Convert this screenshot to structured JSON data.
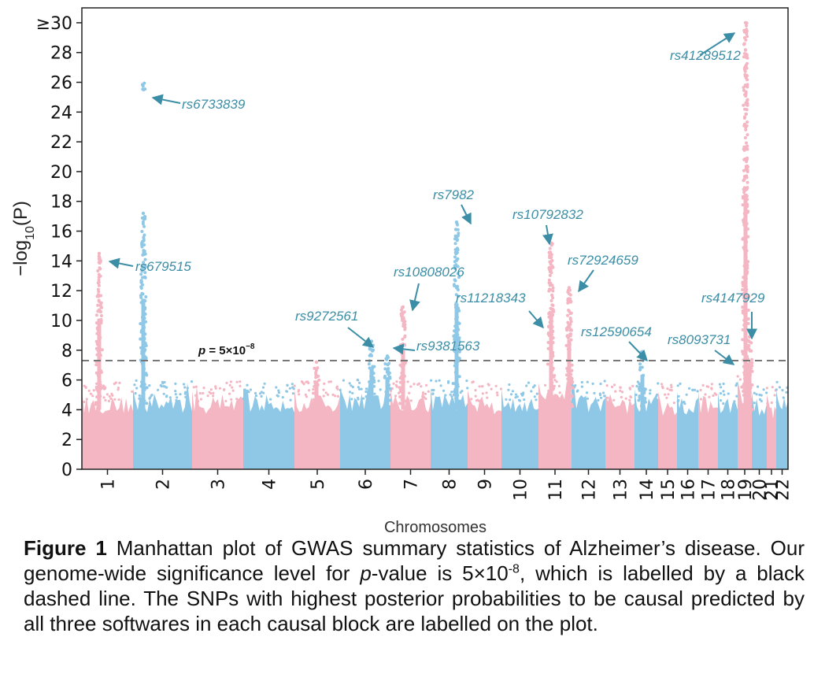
{
  "chart_data": {
    "type": "scatter",
    "subtype": "manhattan",
    "xlabel": "Chromosomes",
    "ylabel_parts": {
      "prefix": "−log",
      "subscript": "10",
      "suffix": "(P)"
    },
    "ylim": [
      0,
      31
    ],
    "yticks": [
      0,
      2,
      4,
      6,
      8,
      10,
      12,
      14,
      16,
      18,
      20,
      22,
      24,
      26,
      28,
      30
    ],
    "ytick_top_label": "≥30",
    "colors": {
      "pink": "#f4b6c2",
      "blue": "#8ec8e6",
      "annotation": "#3b8ea5",
      "threshold": "#777777"
    },
    "chromosomes": [
      {
        "label": "1",
        "start": 0,
        "end": 65,
        "color": "pink",
        "base": 3.7
      },
      {
        "label": "2",
        "start": 65,
        "end": 140,
        "color": "blue",
        "base": 3.8
      },
      {
        "label": "3",
        "start": 140,
        "end": 205,
        "color": "pink",
        "base": 3.7
      },
      {
        "label": "4",
        "start": 205,
        "end": 270,
        "color": "blue",
        "base": 3.8
      },
      {
        "label": "5",
        "start": 270,
        "end": 328,
        "color": "pink",
        "base": 3.8
      },
      {
        "label": "6",
        "start": 328,
        "end": 392,
        "color": "blue",
        "base": 3.9
      },
      {
        "label": "7",
        "start": 392,
        "end": 443,
        "color": "pink",
        "base": 3.8
      },
      {
        "label": "8",
        "start": 443,
        "end": 490,
        "color": "blue",
        "base": 3.9
      },
      {
        "label": "9",
        "start": 490,
        "end": 533,
        "color": "pink",
        "base": 3.7
      },
      {
        "label": "10",
        "start": 533,
        "end": 580,
        "color": "blue",
        "base": 3.8
      },
      {
        "label": "11",
        "start": 580,
        "end": 622,
        "color": "pink",
        "base": 4.2
      },
      {
        "label": "12",
        "start": 622,
        "end": 665,
        "color": "blue",
        "base": 3.8
      },
      {
        "label": "13",
        "start": 665,
        "end": 702,
        "color": "pink",
        "base": 3.5
      },
      {
        "label": "14",
        "start": 702,
        "end": 732,
        "color": "blue",
        "base": 3.8
      },
      {
        "label": "15",
        "start": 732,
        "end": 756,
        "color": "pink",
        "base": 3.6
      },
      {
        "label": "16",
        "start": 756,
        "end": 783,
        "color": "blue",
        "base": 3.6
      },
      {
        "label": "17",
        "start": 783,
        "end": 808,
        "color": "pink",
        "base": 3.7
      },
      {
        "label": "18",
        "start": 808,
        "end": 833,
        "color": "blue",
        "base": 3.6
      },
      {
        "label": "19",
        "start": 833,
        "end": 851,
        "color": "pink",
        "base": 4.4
      },
      {
        "label": "20",
        "start": 851,
        "end": 870,
        "color": "blue",
        "base": 3.6
      },
      {
        "label": "21",
        "start": 870,
        "end": 882,
        "color": "pink",
        "base": 3.4
      },
      {
        "label": "22",
        "start": 882,
        "end": 897,
        "color": "blue",
        "base": 3.7
      }
    ],
    "threshold": {
      "value": 7.3,
      "label_prefix": "p",
      "label_rest": " = 5×10",
      "label_exp": "−8"
    },
    "peaks": [
      {
        "chrom": "1",
        "pos": 22,
        "max": 14.5,
        "color": "pink"
      },
      {
        "chrom": "2",
        "pos": 78,
        "max": 17.2,
        "color": "blue"
      },
      {
        "chrom": "2",
        "pos": 78,
        "max": 26.0,
        "color": "blue",
        "sparse": true
      },
      {
        "chrom": "5",
        "pos": 298,
        "max": 7.2,
        "color": "pink"
      },
      {
        "chrom": "6",
        "pos": 368,
        "max": 8.6,
        "color": "blue"
      },
      {
        "chrom": "6",
        "pos": 388,
        "max": 7.6,
        "color": "blue"
      },
      {
        "chrom": "7",
        "pos": 408,
        "max": 10.9,
        "color": "pink"
      },
      {
        "chrom": "8",
        "pos": 476,
        "max": 16.6,
        "color": "blue"
      },
      {
        "chrom": "11",
        "pos": 596,
        "max": 15.2,
        "color": "pink"
      },
      {
        "chrom": "11",
        "pos": 619,
        "max": 12.2,
        "color": "pink"
      },
      {
        "chrom": "14",
        "pos": 712,
        "max": 7.9,
        "color": "blue"
      },
      {
        "chrom": "19",
        "pos": 843,
        "max": 30.0,
        "color": "pink"
      },
      {
        "chrom": "19",
        "pos": 848,
        "max": 8.9,
        "color": "pink"
      }
    ],
    "annotations": [
      {
        "text": "rs41289512",
        "tx": 747,
        "ty": 66,
        "ax": 785,
        "ay": 60,
        "hx": 829,
        "hy": 32
      },
      {
        "text": "rs6733839",
        "tx": 127,
        "ty": 128,
        "ax": 125,
        "ay": 121,
        "hx": 90,
        "hy": 114
      },
      {
        "text": "rs7982",
        "tx": 446,
        "ty": 243,
        "ax": 482,
        "ay": 250,
        "hx": 494,
        "hy": 274
      },
      {
        "text": "rs10792832",
        "tx": 547,
        "ty": 268,
        "ax": 590,
        "ay": 276,
        "hx": 594,
        "hy": 300
      },
      {
        "text": "rs679515",
        "tx": 68,
        "ty": 334,
        "ax": 65,
        "ay": 328,
        "hx": 35,
        "hy": 322
      },
      {
        "text": "rs72924659",
        "tx": 617,
        "ty": 326,
        "ax": 650,
        "ay": 333,
        "hx": 631,
        "hy": 360
      },
      {
        "text": "rs10808026",
        "tx": 396,
        "ty": 341,
        "ax": 428,
        "ay": 350,
        "hx": 420,
        "hy": 384
      },
      {
        "text": "rs11218343",
        "tx": 475,
        "ty": 374,
        "ax": 568,
        "ay": 385,
        "hx": 586,
        "hy": 406
      },
      {
        "text": "rs4147929",
        "tx": 787,
        "ty": 374,
        "ax": 851,
        "ay": 386,
        "hx": 851,
        "hy": 420
      },
      {
        "text": "rs9272561",
        "tx": 271,
        "ty": 397,
        "ax": 338,
        "ay": 406,
        "hx": 370,
        "hy": 431
      },
      {
        "text": "rs12590654",
        "tx": 634,
        "ty": 417,
        "ax": 695,
        "ay": 424,
        "hx": 718,
        "hy": 448
      },
      {
        "text": "rs8093731",
        "tx": 744,
        "ty": 427,
        "ax": 804,
        "ay": 435,
        "hx": 828,
        "hy": 453
      },
      {
        "text": "rs9381563",
        "tx": 425,
        "ty": 435,
        "ax": 423,
        "ay": 435,
        "hx": 396,
        "hy": 432
      }
    ]
  },
  "caption": {
    "label": "Figure 1",
    "text_1": " Manhattan plot of GWAS summary statistics of Alzheimer’s disease. Our genome-wide significance level for ",
    "p_italic": "p",
    "text_2": "-value is 5×10",
    "exp": "-8",
    "text_3": ", which is labelled by a black dashed line. The SNPs with highest posterior probabilities to be causal predicted by all three softwares in each causal block are labelled on the plot."
  }
}
